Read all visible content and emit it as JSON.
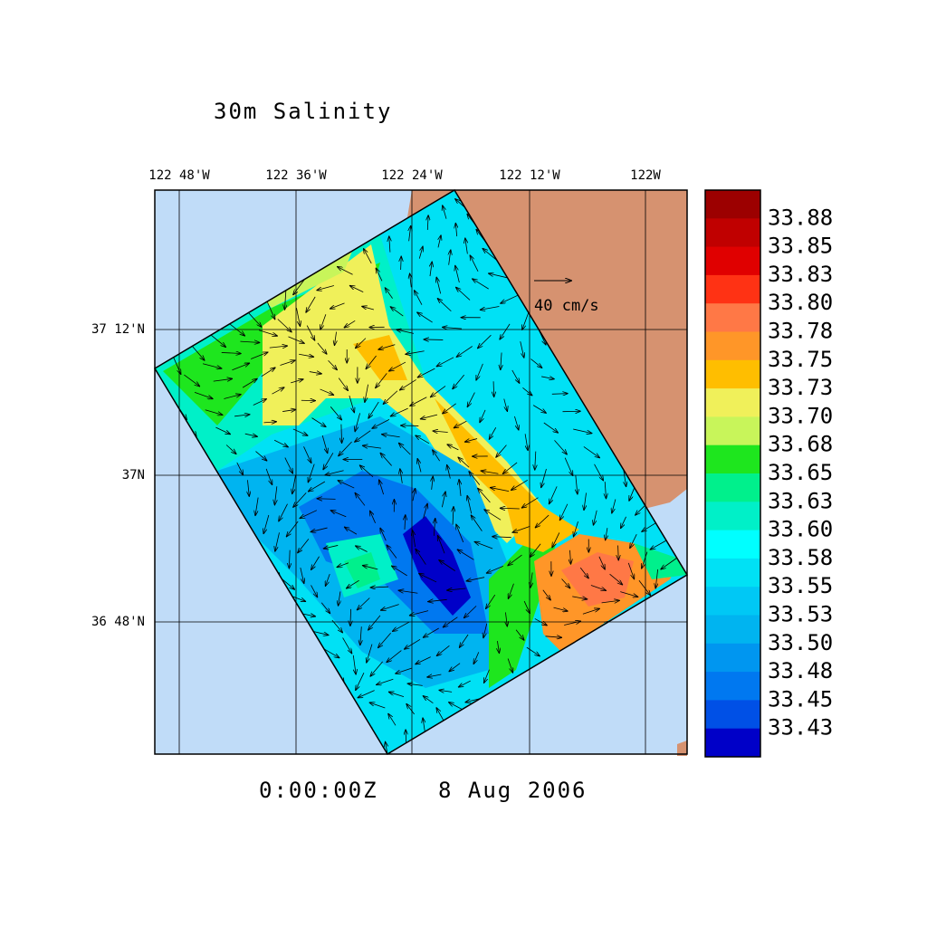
{
  "title": "30m Salinity",
  "lon_labels": [
    "122 48'W",
    "122 36'W",
    "122 24'W",
    "122 12'W",
    "122W"
  ],
  "lat_labels": [
    "37 12'N",
    "37N",
    "36 48'N"
  ],
  "vector_scale": "40 cm/s",
  "time": "0:00:00Z",
  "date": "8 Aug 2006",
  "colorbar": {
    "labels": [
      "33.88",
      "33.85",
      "33.83",
      "33.80",
      "33.78",
      "33.75",
      "33.73",
      "33.70",
      "33.68",
      "33.65",
      "33.63",
      "33.60",
      "33.58",
      "33.55",
      "33.53",
      "33.50",
      "33.48",
      "33.45",
      "33.43"
    ],
    "colors": [
      "#9c0000",
      "#c00000",
      "#e00000",
      "#ff3214",
      "#ff7846",
      "#ff9628",
      "#ffbe00",
      "#f0f05a",
      "#c8f55a",
      "#1ee61e",
      "#00f08c",
      "#00f0c8",
      "#00ffff",
      "#00e1f5",
      "#00c8f5",
      "#00b4f0",
      "#0096f0",
      "#0078f0",
      "#0050e6",
      "#0000c8"
    ]
  }
}
